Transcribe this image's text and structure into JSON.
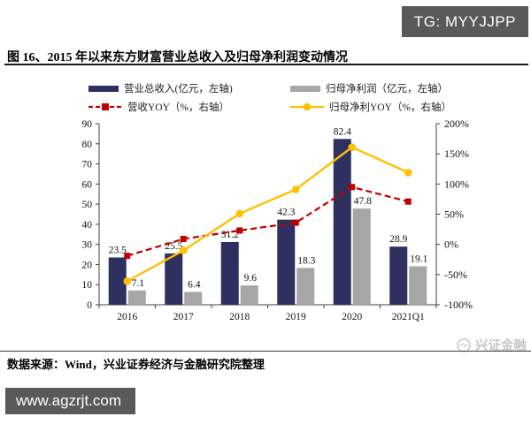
{
  "badge": {
    "label": "TG: MYYJJPP",
    "bg": "#595959"
  },
  "figure": {
    "title": "图 16、2015 年以来东方财富营业总收入及归母净利润变动情况"
  },
  "chart_data": {
    "type": "bar",
    "subtype": "bar-line-combo",
    "categories": [
      "2016",
      "2017",
      "2018",
      "2019",
      "2020",
      "2021Q1"
    ],
    "series": [
      {
        "name": "营业总收入(亿元，左轴)",
        "type": "bar",
        "axis": "left",
        "color": "#2E3160",
        "values": [
          23.5,
          25.5,
          31.2,
          42.3,
          82.4,
          28.9
        ]
      },
      {
        "name": "归母净利润（亿元，左轴）",
        "type": "bar",
        "axis": "left",
        "color": "#A6A6A6",
        "values": [
          7.1,
          6.4,
          9.6,
          18.3,
          47.8,
          19.1
        ]
      },
      {
        "name": "营收YOY（%，右轴）",
        "type": "line",
        "style": "dashed",
        "marker": "square",
        "axis": "right",
        "color": "#C00000",
        "values": [
          -19,
          9,
          23,
          36,
          95,
          71
        ]
      },
      {
        "name": "归母净利YOY（%，右轴）",
        "type": "line",
        "style": "solid",
        "marker": "circle",
        "axis": "right",
        "color": "#FFC000",
        "values": [
          -61,
          -10,
          51,
          91,
          161,
          119
        ]
      }
    ],
    "left_axis": {
      "min": 0,
      "max": 90,
      "ticks": [
        0,
        10,
        20,
        30,
        40,
        50,
        60,
        70,
        80,
        90
      ]
    },
    "right_axis": {
      "min": -100,
      "max": 200,
      "ticks": [
        200,
        150,
        100,
        50,
        0,
        -50,
        -100
      ],
      "unit": "%"
    },
    "grid": false,
    "legend_position": "top"
  },
  "watermark": {
    "label": "兴证金融"
  },
  "source": {
    "label": "数据来源：Wind，兴业证券经济与金融研究院整理"
  },
  "footer_banner": {
    "label": "www.agzrjt.com"
  }
}
